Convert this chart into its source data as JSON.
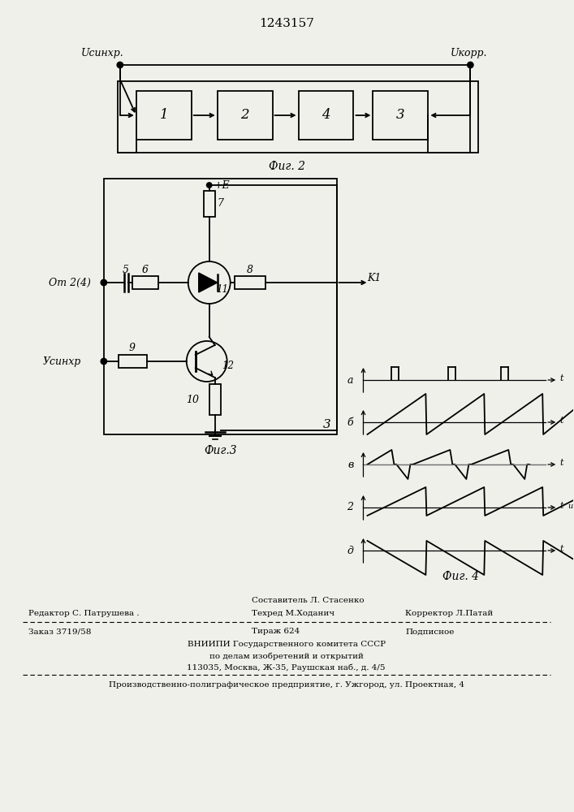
{
  "title": "1243157",
  "fig2_label": "Фиг. 2",
  "fig3_label": "Фиг.3",
  "fig4_label": "Фиг. 4",
  "u_synhr": "Uсинхр.",
  "u_korr": "Uкорр.",
  "u_synhr3": "Усинхр",
  "from_2_4": "От 2(4)",
  "plus_E": "+E",
  "k1": "K1",
  "block3_label": "3",
  "editor": "Редактор С. Патрушева .",
  "composer": "Составитель Л. Стасенко",
  "techred": "Техред М.Ходанич",
  "corrector": "Корректор Л.Патай",
  "order": "Заказ 3719/58",
  "tirazh": "Тираж 624",
  "podpisnoe": "Подписное",
  "vniip1": "ВНИИПИ Государственного комитета СССР",
  "vniip2": "по делам изобретений и открытий",
  "vniip3": "113035, Москва, Ж-35, Раушская наб., д. 4/5",
  "production": "Производственно-полиграфическое предприятие, г. Ужгород, ул. Проектная, 4",
  "bg_color": "#f0f0eb"
}
